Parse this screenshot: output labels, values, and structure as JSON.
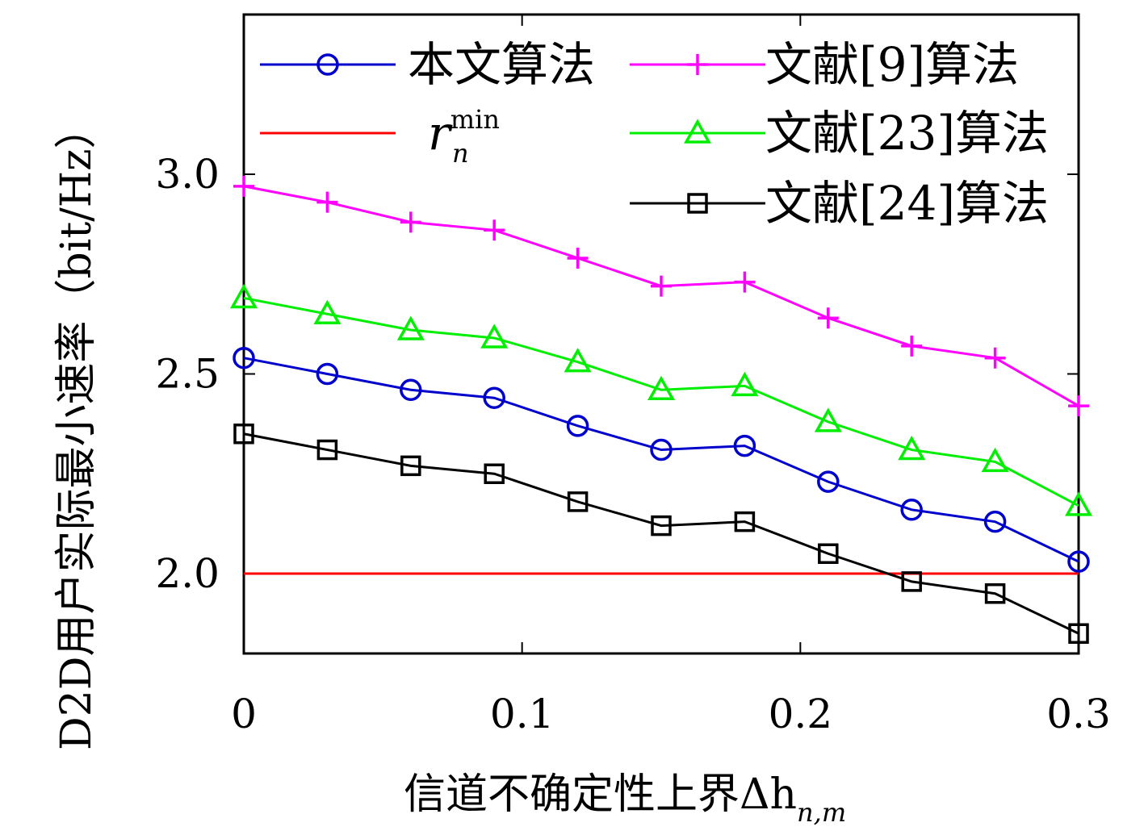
{
  "chart_data": {
    "type": "line",
    "xlabel": "信道不确定性上界Δh",
    "xlabel_sub": "n,m",
    "ylabel": "D2D用户实际最小速率（bit/Hz）",
    "xlim": [
      0,
      0.3
    ],
    "ylim": [
      1.8,
      3.4
    ],
    "xticks": [
      0,
      0.1,
      0.2,
      0.3
    ],
    "xtick_labels": [
      "0",
      "0.1",
      "0.2",
      "0.3"
    ],
    "yticks": [
      2.0,
      2.5,
      3.0
    ],
    "ytick_labels": [
      "2.0",
      "2.5",
      "3.0"
    ],
    "grid": false,
    "legend_position": "top",
    "x": [
      0,
      0.03,
      0.06,
      0.09,
      0.12,
      0.15,
      0.18,
      0.21,
      0.24,
      0.27,
      0.3
    ],
    "series": [
      {
        "name": "本文算法",
        "color": "#0000cc",
        "marker": "circle",
        "values": [
          2.54,
          2.5,
          2.46,
          2.44,
          2.37,
          2.31,
          2.32,
          2.23,
          2.16,
          2.13,
          2.03
        ]
      },
      {
        "name": "文献[9]算法",
        "color": "#ff00ff",
        "marker": "plus",
        "values": [
          2.97,
          2.93,
          2.88,
          2.86,
          2.79,
          2.72,
          2.73,
          2.64,
          2.57,
          2.54,
          2.42
        ]
      },
      {
        "name": "r",
        "name_sub": "n",
        "name_sup": "min",
        "color": "#ff0000",
        "marker": "none",
        "values": [
          2.0,
          2.0,
          2.0,
          2.0,
          2.0,
          2.0,
          2.0,
          2.0,
          2.0,
          2.0,
          2.0
        ]
      },
      {
        "name": "文献[23]算法",
        "color": "#00ee00",
        "marker": "triangle",
        "values": [
          2.69,
          2.65,
          2.61,
          2.59,
          2.53,
          2.46,
          2.47,
          2.38,
          2.31,
          2.28,
          2.17
        ]
      },
      {
        "name": "文献[24]算法",
        "color": "#000000",
        "marker": "square",
        "values": [
          2.35,
          2.31,
          2.27,
          2.25,
          2.18,
          2.12,
          2.13,
          2.05,
          1.98,
          1.95,
          1.85
        ]
      }
    ]
  }
}
